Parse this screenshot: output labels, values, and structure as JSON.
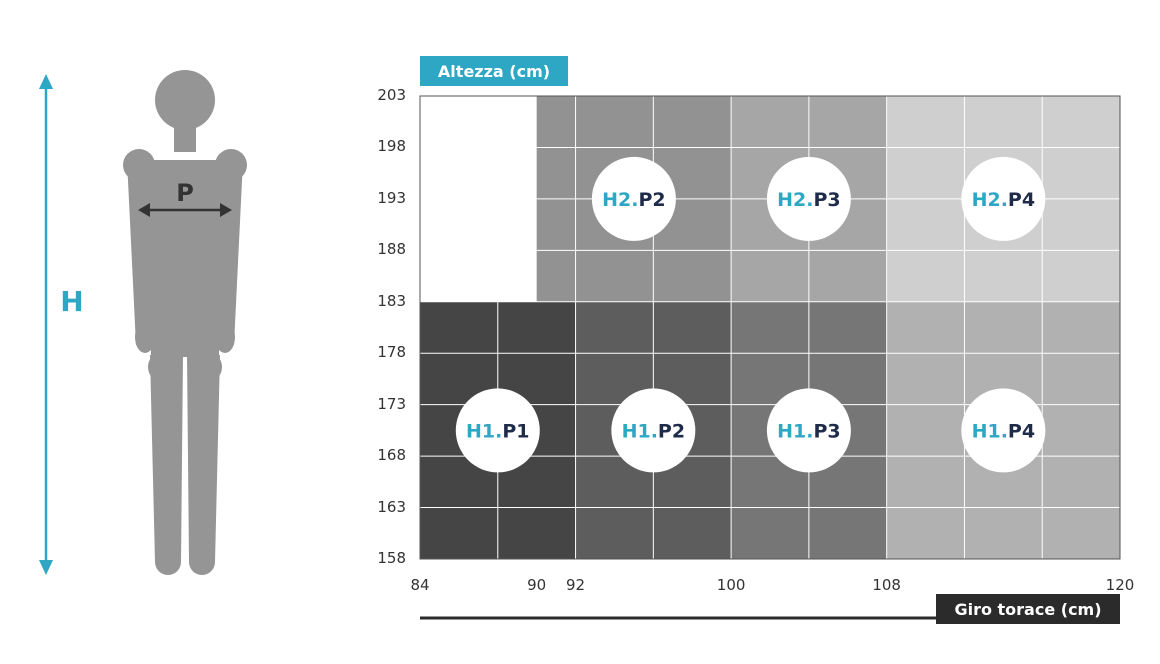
{
  "colors": {
    "accent": "#2ea7c4",
    "navy": "#1e2b49",
    "figure": "#959595",
    "arrow": "#333333",
    "h1p1": "#454545",
    "h1p2": "#5d5d5d",
    "h1p3": "#767676",
    "h1p4": "#b1b1b1",
    "h2p2": "#929292",
    "h2p3": "#a6a6a6",
    "h2p4": "#cfcfcf",
    "xlabel_bg": "#2b2b2b"
  },
  "figure": {
    "height_label": "H",
    "chest_label": "P"
  },
  "chart": {
    "ylabel": "Altezza (cm)",
    "xlabel": "Giro torace (cm)",
    "y_ticks": [
      "203",
      "198",
      "193",
      "188",
      "183",
      "178",
      "173",
      "168",
      "163",
      "158"
    ],
    "x_ticks": [
      "84",
      "90",
      "92",
      "100",
      "108",
      "120"
    ],
    "regions": [
      {
        "id": "H1.P1",
        "h": "H1.",
        "p": "P1",
        "x": [
          84,
          92
        ],
        "y": [
          158,
          183
        ],
        "color": "h1p1"
      },
      {
        "id": "H1.P2",
        "h": "H1.",
        "p": "P2",
        "x": [
          92,
          100
        ],
        "y": [
          158,
          183
        ],
        "color": "h1p2"
      },
      {
        "id": "H1.P3",
        "h": "H1.",
        "p": "P3",
        "x": [
          100,
          108
        ],
        "y": [
          158,
          183
        ],
        "color": "h1p3"
      },
      {
        "id": "H1.P4",
        "h": "H1.",
        "p": "P4",
        "x": [
          108,
          120
        ],
        "y": [
          158,
          183
        ],
        "color": "h1p4"
      },
      {
        "id": "H2.P2",
        "h": "H2.",
        "p": "P2",
        "x": [
          90,
          100
        ],
        "y": [
          183,
          203
        ],
        "color": "h2p2"
      },
      {
        "id": "H2.P3",
        "h": "H2.",
        "p": "P3",
        "x": [
          100,
          108
        ],
        "y": [
          183,
          203
        ],
        "color": "h2p3"
      },
      {
        "id": "H2.P4",
        "h": "H2.",
        "p": "P4",
        "x": [
          108,
          120
        ],
        "y": [
          183,
          203
        ],
        "color": "h2p4"
      }
    ]
  }
}
